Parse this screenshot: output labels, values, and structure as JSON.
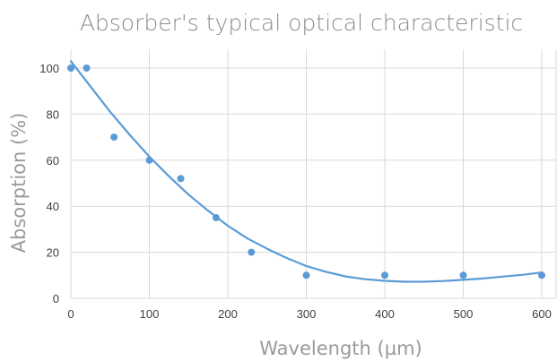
{
  "chart_data": {
    "type": "scatter",
    "title": "Absorber's typical optical characteristic",
    "xlabel": "Wavelength (µm)",
    "ylabel": "Absorption (%)",
    "xlim": [
      0,
      600
    ],
    "ylim": [
      0,
      100
    ],
    "x_ticks": [
      0,
      100,
      200,
      300,
      400,
      500,
      600
    ],
    "y_ticks": [
      0,
      20,
      40,
      60,
      80,
      100
    ],
    "grid": "vertical-and-horizontal",
    "legend": "none",
    "series": [
      {
        "x": [
          0,
          20,
          55,
          100,
          140,
          185,
          230,
          300,
          400,
          500,
          600
        ],
        "y": [
          100,
          100,
          70,
          60,
          52,
          35,
          20,
          10,
          10,
          10,
          10
        ]
      }
    ],
    "trendline": {
      "type": "polynomial",
      "x": [
        0,
        25,
        50,
        75,
        100,
        125,
        150,
        175,
        200,
        225,
        250,
        275,
        300,
        325,
        350,
        375,
        400,
        425,
        450,
        475,
        500,
        525,
        550,
        575,
        600
      ],
      "y": [
        103,
        92,
        81,
        71,
        61.5,
        53,
        45,
        38,
        31.5,
        26,
        21.5,
        17.5,
        14,
        11.5,
        9.5,
        8.3,
        7.6,
        7.2,
        7.2,
        7.5,
        8,
        8.6,
        9.4,
        10.2,
        11.2
      ]
    },
    "colors": {
      "series": "#5b9bd5"
    }
  }
}
